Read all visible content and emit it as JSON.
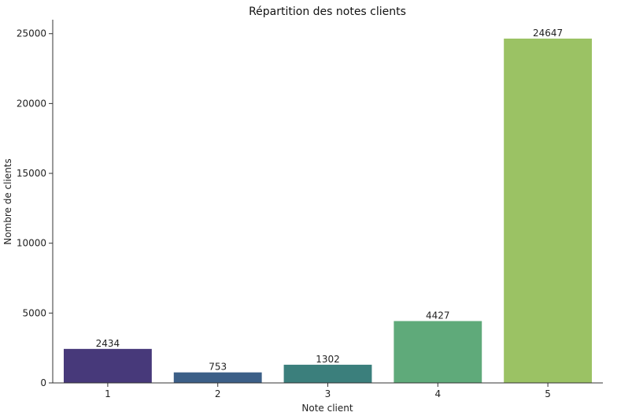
{
  "chart_data": {
    "type": "bar",
    "title": "Répartition des notes clients",
    "xlabel": "Note client",
    "ylabel": "Nombre de clients",
    "categories": [
      "1",
      "2",
      "3",
      "4",
      "5"
    ],
    "values": [
      2434,
      753,
      1302,
      4427,
      24647
    ],
    "colors": [
      "#47397a",
      "#3c5f87",
      "#3b7f7c",
      "#5faa7a",
      "#9bc264"
    ],
    "ylim": [
      0,
      26000
    ],
    "yticks": [
      0,
      5000,
      10000,
      15000,
      20000,
      25000
    ],
    "grid": false,
    "legend": "none"
  }
}
